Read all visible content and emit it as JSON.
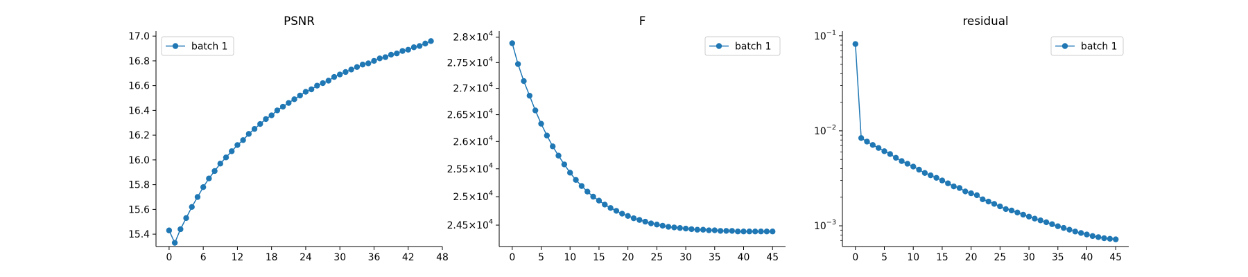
{
  "chart_data": [
    {
      "type": "line",
      "title": "PSNR",
      "xlabel": "",
      "ylabel": "",
      "yscale": "linear",
      "xlim": [
        -2.3,
        48
      ],
      "ylim": [
        15.3,
        17.04
      ],
      "xticks": [
        0,
        6,
        12,
        18,
        24,
        30,
        36,
        42,
        48
      ],
      "xtick_labels": [
        "0",
        "6",
        "12",
        "18",
        "24",
        "30",
        "36",
        "42",
        "48"
      ],
      "yticks": [
        15.4,
        15.6,
        15.8,
        16.0,
        16.2,
        16.4,
        16.6,
        16.8,
        17.0
      ],
      "ytick_labels": [
        "15.4",
        "15.6",
        "15.8",
        "16.0",
        "16.2",
        "16.4",
        "16.6",
        "16.8",
        "17.0"
      ],
      "legend_placement": "upper-left",
      "grid": false,
      "series": [
        {
          "name": "batch 1",
          "color": "#1f77b4",
          "marker": "circle",
          "x": [
            0,
            1,
            2,
            3,
            4,
            5,
            6,
            7,
            8,
            9,
            10,
            11,
            12,
            13,
            14,
            15,
            16,
            17,
            18,
            19,
            20,
            21,
            22,
            23,
            24,
            25,
            26,
            27,
            28,
            29,
            30,
            31,
            32,
            33,
            34,
            35,
            36,
            37,
            38,
            39,
            40,
            41,
            42,
            43,
            44,
            45,
            46
          ],
          "y": [
            15.43,
            15.33,
            15.44,
            15.53,
            15.62,
            15.7,
            15.78,
            15.85,
            15.91,
            15.97,
            16.02,
            16.07,
            16.12,
            16.16,
            16.21,
            16.25,
            16.29,
            16.33,
            16.36,
            16.4,
            16.43,
            16.46,
            16.49,
            16.52,
            16.55,
            16.57,
            16.6,
            16.62,
            16.64,
            16.67,
            16.69,
            16.71,
            16.73,
            16.75,
            16.77,
            16.78,
            16.8,
            16.82,
            16.83,
            16.85,
            16.86,
            16.88,
            16.89,
            16.91,
            16.92,
            16.94,
            16.96
          ]
        }
      ]
    },
    {
      "type": "line",
      "title": "F",
      "xlabel": "",
      "ylabel": "",
      "yscale": "log",
      "xlim": [
        -2.25,
        47.25
      ],
      "ylim": [
        24130,
        28120
      ],
      "xticks": [
        0,
        5,
        10,
        15,
        20,
        25,
        30,
        35,
        40,
        45
      ],
      "xtick_labels": [
        "0",
        "5",
        "10",
        "15",
        "20",
        "25",
        "30",
        "35",
        "40",
        "45"
      ],
      "yticks": [
        24500,
        25000,
        25500,
        26000,
        26500,
        27000,
        27500,
        28000
      ],
      "ytick_labels": [
        "2.45×10",
        "2.5×10",
        "2.55×10",
        "2.6×10",
        "2.65×10",
        "2.7×10",
        "2.75×10",
        "2.8×10"
      ],
      "ytick_exponent": "4",
      "legend_placement": "upper-right",
      "grid": false,
      "series": [
        {
          "name": "batch 1",
          "color": "#1f77b4",
          "marker": "circle",
          "x": [
            0,
            1,
            2,
            3,
            4,
            5,
            6,
            7,
            8,
            9,
            10,
            11,
            12,
            13,
            14,
            15,
            16,
            17,
            18,
            19,
            20,
            21,
            22,
            23,
            24,
            25,
            26,
            27,
            28,
            29,
            30,
            31,
            32,
            33,
            34,
            35,
            36,
            37,
            38,
            39,
            40,
            41,
            42,
            43,
            44,
            45
          ],
          "y": [
            27880,
            27470,
            27140,
            26860,
            26580,
            26330,
            26110,
            25910,
            25740,
            25580,
            25430,
            25300,
            25190,
            25090,
            25000,
            24930,
            24860,
            24800,
            24750,
            24700,
            24660,
            24620,
            24590,
            24560,
            24530,
            24510,
            24490,
            24470,
            24460,
            24450,
            24440,
            24430,
            24420,
            24420,
            24410,
            24410,
            24400,
            24400,
            24400,
            24390,
            24390,
            24390,
            24390,
            24390,
            24390,
            24390
          ]
        }
      ]
    },
    {
      "type": "line",
      "title": "residual",
      "xlabel": "",
      "ylabel": "",
      "yscale": "log",
      "xlim": [
        -2.25,
        47.25
      ],
      "ylim": [
        0.000605,
        0.112
      ],
      "xticks": [
        0,
        5,
        10,
        15,
        20,
        25,
        30,
        35,
        40,
        45
      ],
      "xtick_labels": [
        "0",
        "5",
        "10",
        "15",
        "20",
        "25",
        "30",
        "35",
        "40",
        "45"
      ],
      "yticks": [
        0.001,
        0.01,
        0.1
      ],
      "ytick_labels": [
        "10",
        "10",
        "10"
      ],
      "ytick_exponents": [
        "−3",
        "−2",
        "−1"
      ],
      "legend_placement": "upper-right",
      "grid": false,
      "series": [
        {
          "name": "batch 1",
          "color": "#1f77b4",
          "marker": "circle",
          "x": [
            0,
            1,
            2,
            3,
            4,
            5,
            6,
            7,
            8,
            9,
            10,
            11,
            12,
            13,
            14,
            15,
            16,
            17,
            18,
            19,
            20,
            21,
            22,
            23,
            24,
            25,
            26,
            27,
            28,
            29,
            30,
            31,
            32,
            33,
            34,
            35,
            36,
            37,
            38,
            39,
            40,
            41,
            42,
            43,
            44,
            45
          ],
          "y": [
            0.082,
            0.0084,
            0.0077,
            0.0071,
            0.0066,
            0.0061,
            0.0057,
            0.0052,
            0.0048,
            0.0045,
            0.0042,
            0.0039,
            0.0036,
            0.0034,
            0.0032,
            0.003,
            0.0028,
            0.0026,
            0.0025,
            0.0023,
            0.0022,
            0.0021,
            0.0019,
            0.0018,
            0.0017,
            0.0016,
            0.0015,
            0.00145,
            0.00138,
            0.00131,
            0.00125,
            0.00119,
            0.00114,
            0.00109,
            0.00104,
            0.00099,
            0.00095,
            0.00091,
            0.00087,
            0.00084,
            0.00081,
            0.00078,
            0.00076,
            0.00074,
            0.00073,
            0.00072
          ]
        }
      ]
    }
  ]
}
